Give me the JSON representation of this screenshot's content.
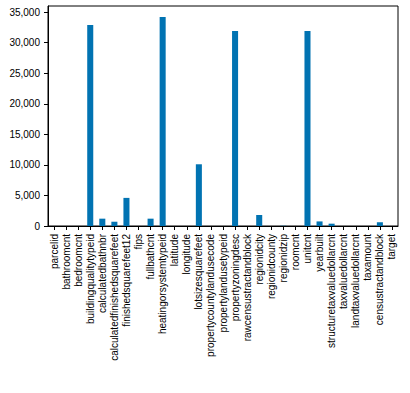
{
  "chart_data": {
    "type": "bar",
    "categories": [
      "parcelid",
      "bathroomcnt",
      "bedroomcnt",
      "buildingqualitytypeid",
      "calculatedbathnbr",
      "calculatedfinishedsquarefeet",
      "finishedsquarefeet12",
      "fips",
      "fullbathcnt",
      "heatingorsystemtypeid",
      "latitude",
      "longitude",
      "lotsizesquarefeet",
      "propertycountylandusecode",
      "propertylandusetypeid",
      "propertyzoningdesc",
      "rawcensustractandblock",
      "regionidcity",
      "regionidcounty",
      "regionidzip",
      "roomcnt",
      "unitcnt",
      "yearbuilt",
      "structuretaxvaluedollarcnt",
      "taxvaluedollarcnt",
      "landtaxvaluedollarcnt",
      "taxamount",
      "censustractandblock",
      "target"
    ],
    "values": [
      0,
      0,
      0,
      32900,
      1200,
      700,
      4600,
      0,
      1200,
      34200,
      0,
      0,
      10100,
      1,
      0,
      31900,
      0,
      1800,
      0,
      30,
      0,
      31900,
      750,
      380,
      1,
      1,
      5,
      600,
      0
    ],
    "color": "#0173b2",
    "ylim": [
      0,
      36000
    ],
    "yticks": [
      0,
      5000,
      10000,
      15000,
      20000,
      25000,
      30000,
      35000
    ],
    "grid": false
  }
}
